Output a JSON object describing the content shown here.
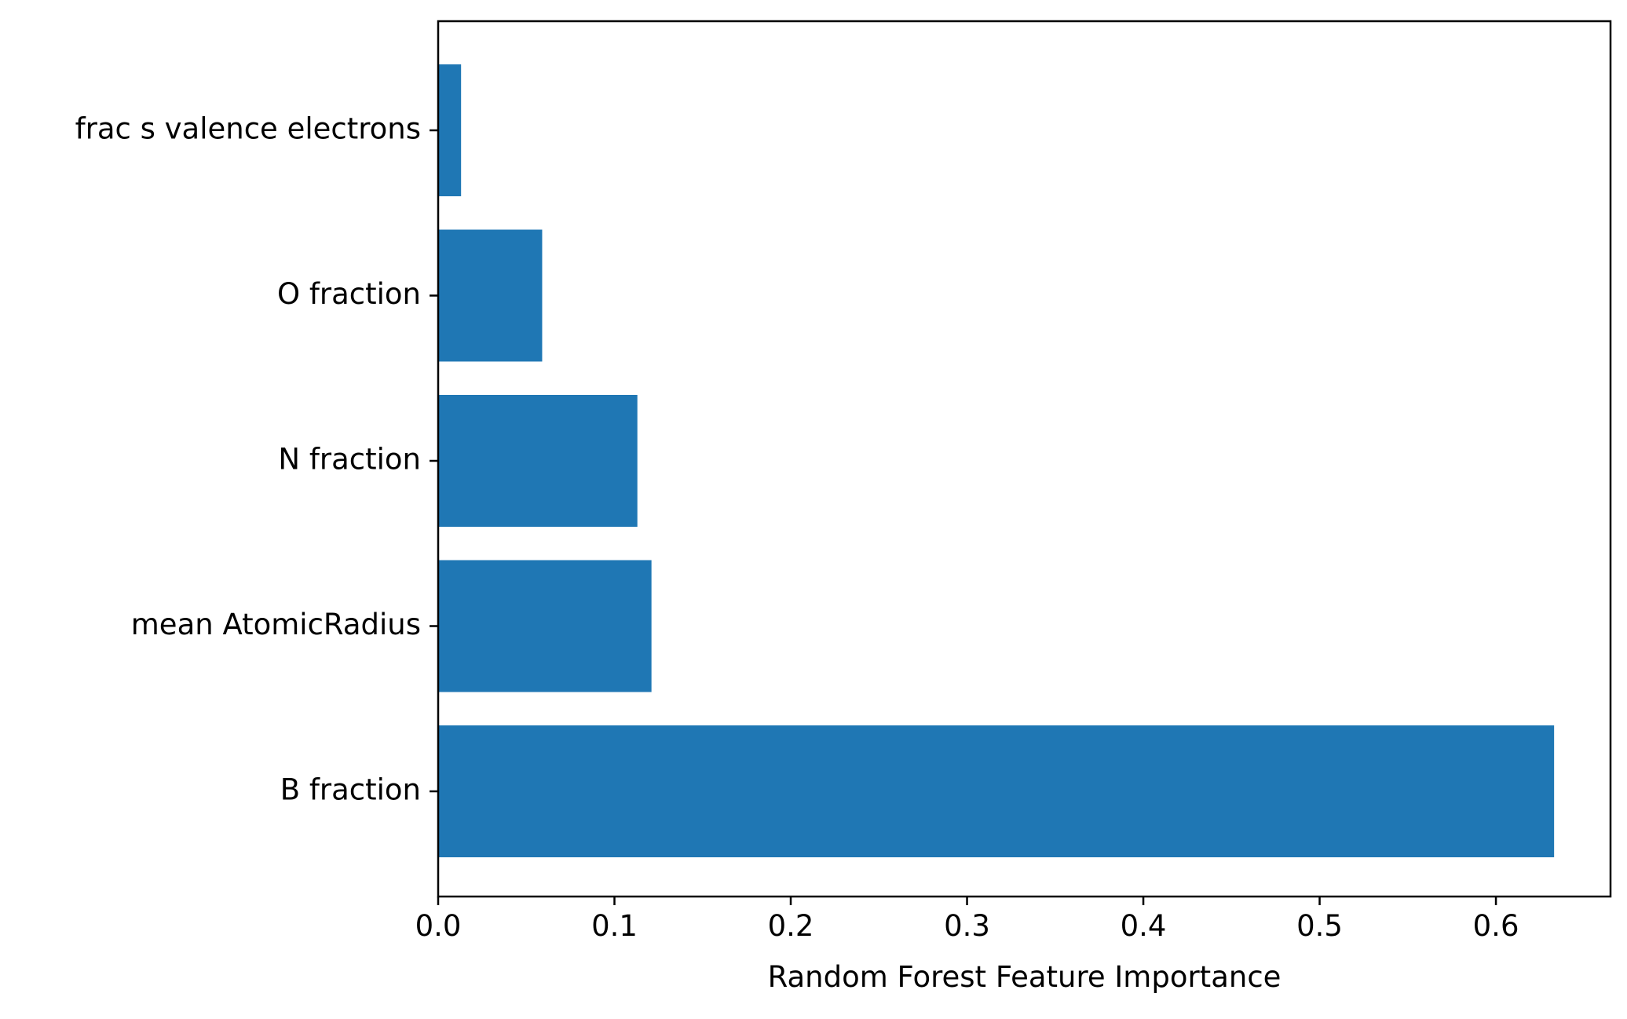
{
  "chart_data": {
    "type": "bar",
    "orientation": "horizontal",
    "title": "",
    "xlabel": "Random Forest Feature Importance",
    "ylabel": "",
    "categories": [
      "B fraction",
      "mean AtomicRadius",
      "N fraction",
      "O fraction",
      "frac s valence electrons"
    ],
    "values": [
      0.633,
      0.121,
      0.113,
      0.059,
      0.013
    ],
    "xlim": [
      0,
      0.665
    ],
    "xticks": [
      0.0,
      0.1,
      0.2,
      0.3,
      0.4,
      0.5,
      0.6
    ],
    "xtick_labels": [
      "0.0",
      "0.1",
      "0.2",
      "0.3",
      "0.4",
      "0.5",
      "0.6"
    ],
    "grid": false,
    "legend": "none",
    "bar_color": "#1f77b4"
  }
}
